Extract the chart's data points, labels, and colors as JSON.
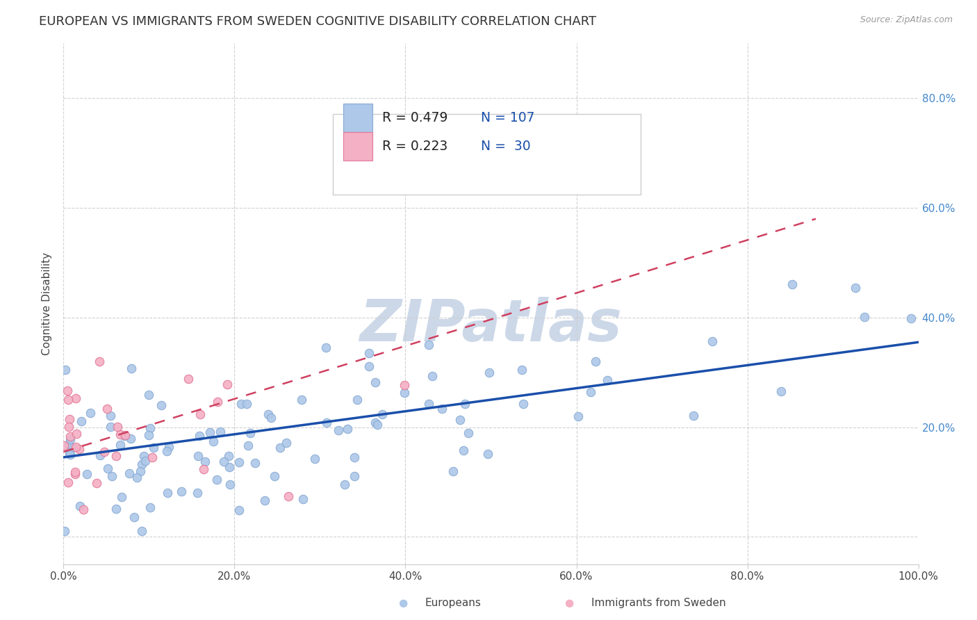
{
  "title": "EUROPEAN VS IMMIGRANTS FROM SWEDEN COGNITIVE DISABILITY CORRELATION CHART",
  "source": "Source: ZipAtlas.com",
  "ylabel": "Cognitive Disability",
  "xlim": [
    0,
    1.0
  ],
  "ylim": [
    -0.05,
    0.9
  ],
  "xticks": [
    0.0,
    0.2,
    0.4,
    0.6,
    0.8,
    1.0
  ],
  "yticks_right": [
    0.2,
    0.4,
    0.6,
    0.8
  ],
  "xticklabels": [
    "0.0%",
    "20.0%",
    "40.0%",
    "60.0%",
    "80.0%",
    "100.0%"
  ],
  "yticklabels_right": [
    "20.0%",
    "40.0%",
    "60.0%",
    "80.0%"
  ],
  "european_R": 0.479,
  "european_N": 107,
  "immigrant_R": 0.223,
  "immigrant_N": 30,
  "european_color": "#adc8e8",
  "european_edge": "#88aad4",
  "immigrant_color": "#f4b0c4",
  "immigrant_edge": "#e07898",
  "trendline_eu_color": "#1a4faa",
  "trendline_im_color": "#d04060",
  "background_color": "#ffffff",
  "grid_color": "#cccccc",
  "title_fontsize": 13,
  "axis_label_fontsize": 11,
  "tick_fontsize": 11,
  "watermark_text": "ZIPatlas",
  "watermark_color": "#ccd8e8",
  "watermark_fontsize": 60,
  "legend_R1": "R = 0.479",
  "legend_N1": "N = 107",
  "legend_R2": "R = 0.223",
  "legend_N2": "N =  30",
  "legend_color_blue": "#1a4faa",
  "legend_label1": "Europeans",
  "legend_label2": "Immigrants from Sweden"
}
